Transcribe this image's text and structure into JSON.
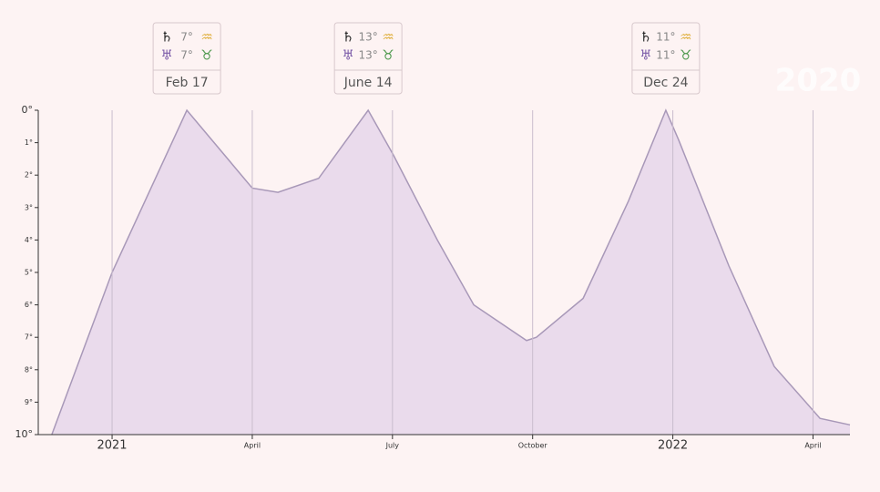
{
  "chart_data": {
    "type": "area",
    "x": [
      -1.29,
      0,
      1.6,
      3,
      3.55,
      4.42,
      5.48,
      6.02,
      6.96,
      7.74,
      8.87,
      9.08,
      10.08,
      11.05,
      11.85,
      12.12,
      13.2,
      14.17,
      15.15,
      15.79
    ],
    "values": [
      10,
      5.0,
      0,
      2.4,
      2.53,
      2.1,
      0,
      1.38,
      4.0,
      6.0,
      7.1,
      7.0,
      5.8,
      2.8,
      0,
      0.9,
      4.8,
      7.9,
      9.5,
      9.7
    ],
    "color": "#e6d6ea",
    "line_color": "#a898b8",
    "xlim": [
      -1.58,
      15.79
    ],
    "ylim": [
      10,
      0
    ],
    "xticks": [
      {
        "value": 0,
        "label": "2021"
      },
      {
        "value": 3,
        "label": "April"
      },
      {
        "value": 6,
        "label": "July"
      },
      {
        "value": 9,
        "label": "October"
      },
      {
        "value": 12,
        "label": "2022"
      },
      {
        "value": 15,
        "label": "April"
      }
    ],
    "yticks": [
      {
        "value": 0,
        "label": "0°"
      },
      {
        "value": 1,
        "label": "1°"
      },
      {
        "value": 2,
        "label": "2°"
      },
      {
        "value": 3,
        "label": "3°"
      },
      {
        "value": 4,
        "label": "4°"
      },
      {
        "value": 5,
        "label": "5°"
      },
      {
        "value": 6,
        "label": "6°"
      },
      {
        "value": 7,
        "label": "7°"
      },
      {
        "value": 8,
        "label": "8°"
      },
      {
        "value": 9,
        "label": "9°"
      },
      {
        "value": 10,
        "label": "10°"
      }
    ],
    "grid": true,
    "annotations": [
      {
        "x": 1.6,
        "label": "Feb 17",
        "rows": [
          [
            "♄",
            "7°",
            "♒"
          ],
          [
            "♅",
            "7°",
            "♉"
          ]
        ]
      },
      {
        "x": 5.48,
        "label": "June 14",
        "rows": [
          [
            "♄",
            "13°",
            "♒"
          ],
          [
            "♅",
            "13°",
            "♉"
          ]
        ]
      },
      {
        "x": 11.85,
        "label": "Dec 24",
        "rows": [
          [
            "♄",
            "11°",
            "♒"
          ],
          [
            "♅",
            "11°",
            "♉"
          ]
        ]
      }
    ],
    "watermark": "2020"
  }
}
